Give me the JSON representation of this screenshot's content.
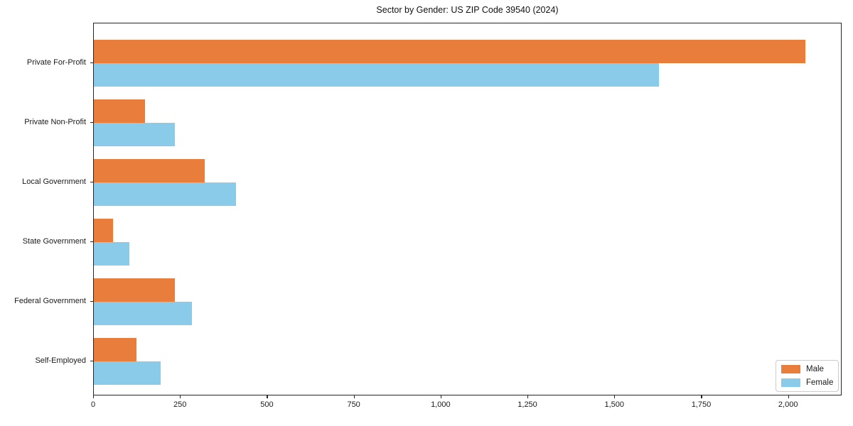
{
  "chart_data": {
    "type": "bar",
    "orientation": "horizontal",
    "title": "Sector by Gender: US ZIP Code 39540 (2024)",
    "categories": [
      "Private For-Profit",
      "Private Non-Profit",
      "Local Government",
      "State Government",
      "Federal Government",
      "Self-Employed"
    ],
    "series": [
      {
        "name": "Male",
        "color": "#e87d3c",
        "values": [
          2047,
          148,
          320,
          55,
          234,
          122
        ]
      },
      {
        "name": "Female",
        "color": "#89cbe8",
        "values": [
          1627,
          234,
          410,
          102,
          283,
          192
        ]
      }
    ],
    "xlabel": "",
    "ylabel": "",
    "xlim": [
      0,
      2150
    ],
    "x_ticks": [
      0,
      250,
      500,
      750,
      1000,
      1250,
      1500,
      1750,
      2000
    ],
    "x_tick_labels": [
      "0",
      "250",
      "500",
      "750",
      "1,000",
      "1,250",
      "1,500",
      "1,750",
      "2,000"
    ],
    "grid": false,
    "legend": {
      "position": "lower right",
      "entries": [
        "Male",
        "Female"
      ]
    }
  }
}
